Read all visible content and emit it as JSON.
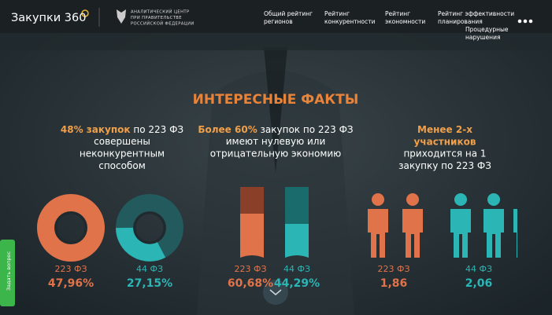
{
  "header": {
    "logo": "Закупки 360",
    "org": [
      "АНАЛИТИЧЕСКИЙ ЦЕНТР",
      "ПРИ ПРАВИТЕЛЬСТВЕ",
      "РОССИЙСКОЙ ФЕДЕРАЦИИ"
    ],
    "nav": [
      [
        "Общий рейтинг",
        "регионов"
      ],
      [
        "Рейтинг",
        "конкурентности"
      ],
      [
        "Рейтинг",
        "экономности"
      ],
      [
        "Рейтинг эффективности",
        "планирования"
      ],
      [
        "Процедурные",
        "нарушения"
      ]
    ]
  },
  "title": "ИНТЕРЕСНЫЕ ФАКТЫ",
  "facts": [
    {
      "lead": [
        "48% закупок"
      ],
      "lead_tail": " по 223 ФЗ",
      "rest": [
        "совершены",
        "неконкурентным",
        "способом"
      ],
      "stats": [
        {
          "label": "223 ФЗ",
          "value": "47,96%"
        },
        {
          "label": "44 ФЗ",
          "value": "27,15%"
        }
      ]
    },
    {
      "lead": [
        "Более 60%"
      ],
      "lead_tail": " закупок по 223 ФЗ",
      "rest": [
        "имеют нулевую или",
        "отрицательную экономию"
      ],
      "stats": [
        {
          "label": "223 ФЗ",
          "value": "60,68%"
        },
        {
          "label": "44 ФЗ",
          "value": "44,29%"
        }
      ]
    },
    {
      "lead": [
        "Менее 2-х",
        "участников"
      ],
      "rest": [
        "приходится на 1",
        "закупку по 223 ФЗ"
      ],
      "stats": [
        {
          "label": "223 ФЗ",
          "value": "1,86"
        },
        {
          "label": "44 ФЗ",
          "value": "2,06"
        }
      ]
    }
  ],
  "side_tab": "Задать вопрос"
}
